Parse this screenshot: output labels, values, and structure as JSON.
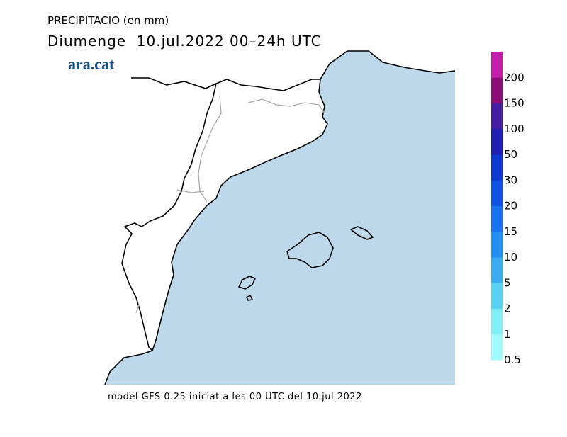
{
  "header": {
    "title": "PRECIPITACIO (en mm)",
    "subtitle": "Diumenge  10.jul.2022 00–24h UTC",
    "logo": "ara.cat"
  },
  "legend": {
    "labels": [
      0.5,
      1,
      2,
      5,
      10,
      15,
      20,
      30,
      50,
      100,
      150,
      200
    ],
    "colors": [
      "#a0fcfc",
      "#7eeef4",
      "#58d2f0",
      "#3cacf0",
      "#228ef0",
      "#1872f0",
      "#1052e6",
      "#0f38d2",
      "#1e1eb4",
      "#461ea0",
      "#8c0f78",
      "#c31eaa"
    ]
  },
  "footer": "model GFS 0.25 iniciat a les 00 UTC del 10 jul 2022"
}
